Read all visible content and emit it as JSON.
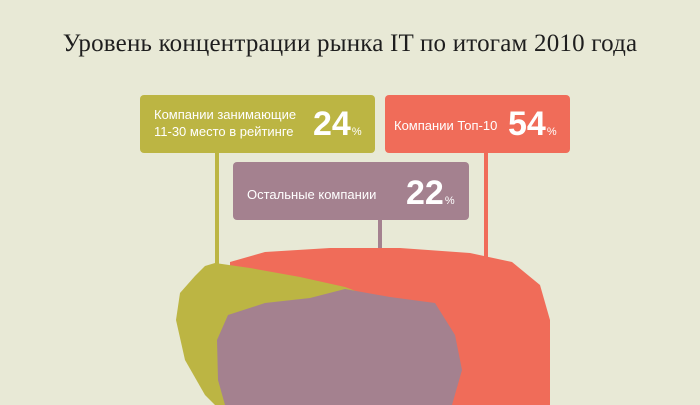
{
  "title": "Уровень концентрации рынка IT по итогам 2010 года",
  "colors": {
    "background": "#e8e9d6",
    "top10": "#f06c59",
    "mid": "#bcb543",
    "rest": "#a4818f"
  },
  "chart_data": {
    "type": "pie",
    "title": "Уровень концентрации рынка IT по итогам 2010 года",
    "slices": [
      {
        "label": "Компании занимающие 11-30 место в рейтинге",
        "value": 24,
        "unit": "%",
        "color": "#bcb543"
      },
      {
        "label": "Компании Топ-10",
        "value": 54,
        "unit": "%",
        "color": "#f06c59"
      },
      {
        "label": "Остальные компании",
        "value": 22,
        "unit": "%",
        "color": "#a4818f"
      }
    ]
  },
  "labels": {
    "mid": {
      "line1": "Компании занимающие",
      "line2": "11-30 место в рейтинге",
      "value": "24",
      "unit": "%"
    },
    "top10": {
      "text": "Компании Топ-10",
      "value": "54",
      "unit": "%"
    },
    "rest": {
      "text": "Остальные компании",
      "value": "22",
      "unit": "%"
    }
  }
}
